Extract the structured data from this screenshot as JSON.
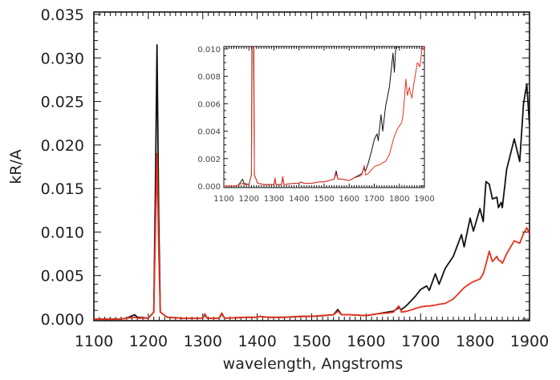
{
  "chart_data": [
    {
      "type": "line",
      "title": "",
      "xlabel": "wavelength, Angstroms",
      "ylabel": "kR/A",
      "xlim": [
        1100,
        1900
      ],
      "ylim": [
        0,
        0.035
      ],
      "xticks": [
        "1100",
        "1200",
        "1300",
        "1400",
        "1500",
        "1600",
        "1700",
        "1800",
        "1900"
      ],
      "yticks": [
        "0.000",
        "0.005",
        "0.010",
        "0.015",
        "0.020",
        "0.025",
        "0.030",
        "0.035"
      ],
      "grid": false,
      "x": [
        1100,
        1150,
        1160,
        1175,
        1180,
        1200,
        1210,
        1213,
        1216,
        1219,
        1222,
        1235,
        1260,
        1300,
        1304,
        1308,
        1330,
        1335,
        1340,
        1380,
        1400,
        1405,
        1420,
        1450,
        1480,
        1500,
        1520,
        1540,
        1548,
        1555,
        1570,
        1600,
        1620,
        1640,
        1650,
        1660,
        1665,
        1675,
        1690,
        1700,
        1711,
        1716,
        1727,
        1734,
        1745,
        1760,
        1775,
        1780,
        1791,
        1797,
        1809,
        1815,
        1820,
        1826,
        1832,
        1840,
        1843,
        1848,
        1850,
        1858,
        1872,
        1882,
        1889,
        1895,
        1900
      ],
      "series": [
        {
          "color": "#111111",
          "values": [
            0,
            0,
            0.0001,
            0.0005,
            0.0002,
            0.0001,
            0.0008,
            0.015,
            0.0315,
            0.012,
            0.0008,
            0.0002,
            0.0001,
            0.0001,
            0.0005,
            0.0001,
            0.0001,
            0.0006,
            0.0001,
            0.0002,
            0.0002,
            0.0003,
            0.0002,
            0.0002,
            0.0003,
            0.0003,
            0.0004,
            0.0005,
            0.0011,
            0.0005,
            0.0005,
            0.0004,
            0.0006,
            0.0008,
            0.0009,
            0.0013,
            0.0011,
            0.0016,
            0.0026,
            0.0034,
            0.0038,
            0.0033,
            0.0052,
            0.004,
            0.0058,
            0.0072,
            0.0097,
            0.0083,
            0.0116,
            0.0101,
            0.0127,
            0.0112,
            0.0158,
            0.0155,
            0.0138,
            0.014,
            0.0128,
            0.0134,
            0.0128,
            0.0172,
            0.0207,
            0.0181,
            0.0247,
            0.027,
            0.0222
          ]
        },
        {
          "color": "#e8321e",
          "values": [
            0,
            0,
            0.0001,
            0.0002,
            0.0001,
            0.0001,
            0.0008,
            0.01,
            0.019,
            0.008,
            0.0008,
            0.0002,
            0.0001,
            0.0001,
            0.0006,
            0.0001,
            0.0001,
            0.0007,
            0.0001,
            0.0002,
            0.0002,
            0.0003,
            0.0002,
            0.0002,
            0.0003,
            0.0003,
            0.0004,
            0.0005,
            0.0009,
            0.0005,
            0.0005,
            0.0004,
            0.0006,
            0.0007,
            0.0008,
            0.0015,
            0.0008,
            0.0009,
            0.0012,
            0.0014,
            0.0015,
            0.0015,
            0.0016,
            0.0017,
            0.0018,
            0.0023,
            0.0033,
            0.0036,
            0.0041,
            0.0043,
            0.0046,
            0.0052,
            0.0063,
            0.0078,
            0.0066,
            0.0072,
            0.0068,
            0.0066,
            0.0064,
            0.0075,
            0.009,
            0.0087,
            0.0098,
            0.0105,
            0.0098
          ]
        }
      ]
    },
    {
      "type": "line",
      "role": "inset",
      "xlim": [
        1100,
        1900
      ],
      "ylim": [
        0,
        0.01
      ],
      "xticks": [
        "1100",
        "1200",
        "1300",
        "1400",
        "1500",
        "1600",
        "1700",
        "1800",
        "1900"
      ],
      "yticks": [
        "0.000",
        "0.002",
        "0.004",
        "0.006",
        "0.008",
        "0.010"
      ],
      "grid": false,
      "same_data_as": "main"
    }
  ]
}
